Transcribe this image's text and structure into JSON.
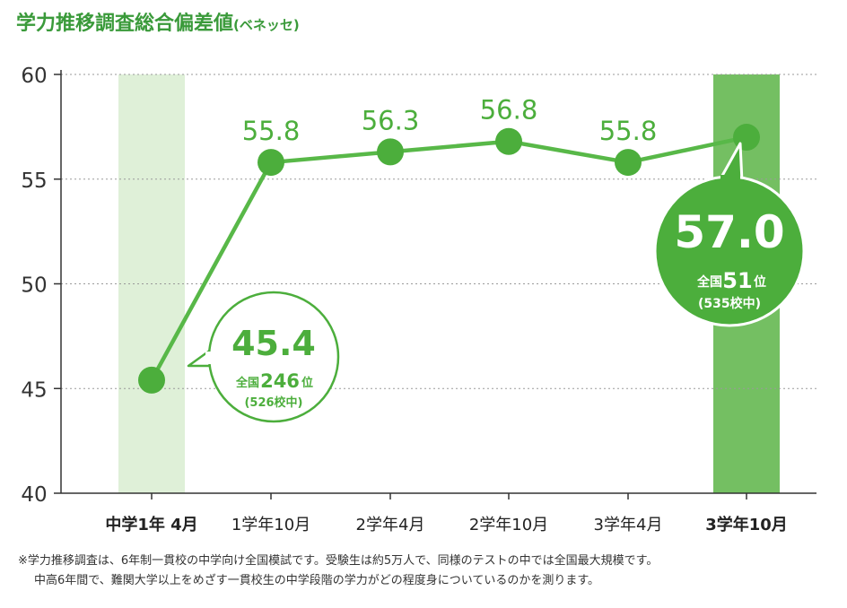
{
  "title": "学力推移調査総合偏差値",
  "title_note": "(ベネッセ)",
  "chart_data": {
    "type": "line",
    "title": "学力推移調査総合偏差値",
    "categories": [
      "中学1年 4月",
      "1学年10月",
      "2学年4月",
      "2学年10月",
      "3学年4月",
      "3学年10月"
    ],
    "series": [
      {
        "values": [
          45.4,
          55.8,
          56.3,
          56.8,
          55.8,
          57.0
        ]
      }
    ],
    "value_labels": [
      "",
      "55.8",
      "56.3",
      "56.8",
      "55.8",
      ""
    ],
    "ylim": [
      40,
      60
    ],
    "yticks": [
      40,
      45,
      50,
      55,
      60
    ],
    "grid": "horizontal dotted",
    "highlight_categories": [
      0,
      5
    ],
    "colors": {
      "line": "#58b848",
      "marker": "#4cae3c",
      "label": "#4cae3c",
      "band_light": "#dff0d8",
      "band_dark": "#74bf62",
      "callout_dark": "#4cae3c",
      "axis": "#333333",
      "grid": "#9a9a9a"
    },
    "callouts": [
      {
        "point": 0,
        "value": "45.4",
        "rank_prefix": "全国",
        "rank": "246",
        "rank_suffix": "位",
        "detail": "(526校中)"
      },
      {
        "point": 5,
        "value": "57.0",
        "rank_prefix": "全国",
        "rank": "51",
        "rank_suffix": "位",
        "detail": "(535校中)"
      }
    ]
  },
  "footnote": {
    "line1": "※学力推移調査は、6年制一貫校の中学向け全国模試です。受験生は約5万人で、同様のテストの中では全国最大規模です。",
    "line2": "中高6年間で、難関大学以上をめざす一貫校生の中学段階の学力がどの程度身についているのかを測ります。"
  }
}
